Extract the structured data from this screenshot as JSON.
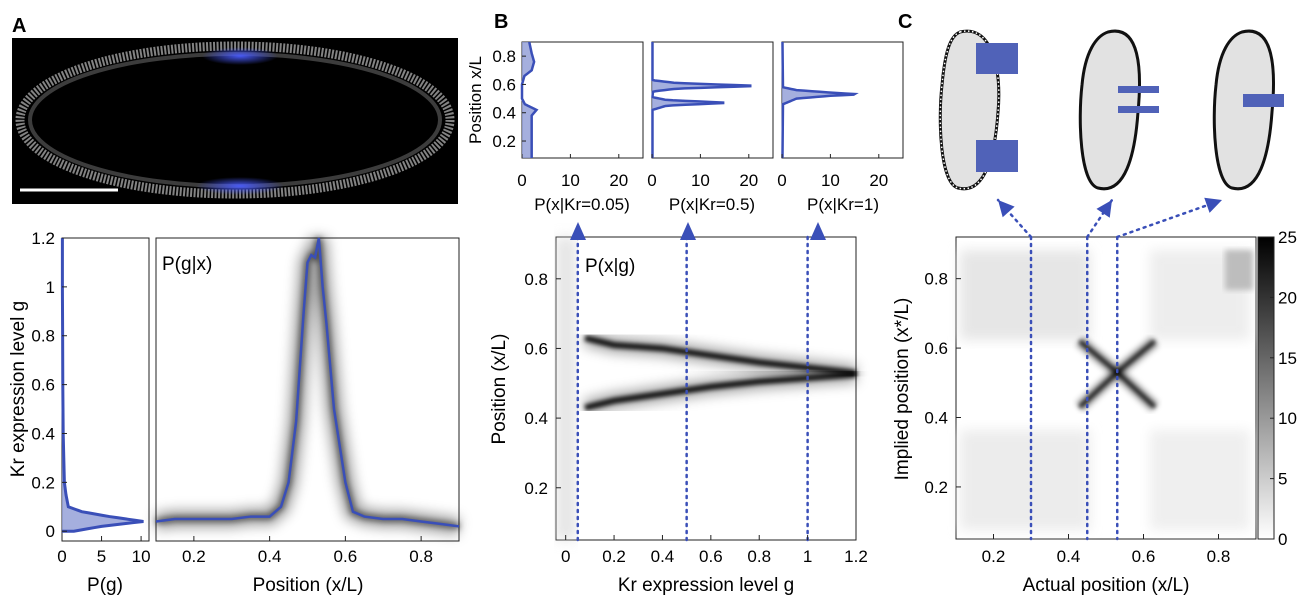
{
  "colors": {
    "accent": "#3a4fb8",
    "fill": "#8f9bd6",
    "embryo": "#e2e2e2"
  },
  "panels": {
    "A": {
      "letter": "A",
      "scale_bar": true,
      "pg": {
        "xlabel": "P(g)",
        "ylabel": "Kr expression level g",
        "xticks": [
          "0",
          "5",
          "10"
        ],
        "yticks": [
          "0",
          "0.2",
          "0.4",
          "0.6",
          "0.8",
          "1",
          "1.2"
        ]
      },
      "pgx": {
        "title": "P(g|x)",
        "xlabel": "Position (x/L)",
        "xticks": [
          "0.2",
          "0.4",
          "0.6",
          "0.8"
        ]
      }
    },
    "B": {
      "letter": "B",
      "insets": [
        {
          "label": "P(x|Kr=0.05)"
        },
        {
          "label": "P(x|Kr=0.5)"
        },
        {
          "label": "P(x|Kr=1)"
        }
      ],
      "inset_ylabel": "Position x/L",
      "inset_yticks": [
        "0.2",
        "0.4",
        "0.6",
        "0.8"
      ],
      "inset_xticks": [
        "0",
        "10",
        "20"
      ],
      "main": {
        "title": "P(x|g)",
        "xlabel": "Kr expression level g",
        "ylabel": "Position (x/L)",
        "xticks": [
          "0",
          "0.2",
          "0.4",
          "0.6",
          "0.8",
          "1",
          "1.2"
        ],
        "yticks": [
          "0.2",
          "0.4",
          "0.6",
          "0.8"
        ]
      }
    },
    "C": {
      "letter": "C",
      "xlabel": "Actual position (x/L)",
      "ylabel": "Implied position (x*/L)",
      "xticks": [
        "0.2",
        "0.4",
        "0.6",
        "0.8"
      ],
      "yticks": [
        "0.2",
        "0.4",
        "0.6",
        "0.8"
      ],
      "colorbar_ticks": [
        "0",
        "5",
        "10",
        "15",
        "20",
        "25"
      ]
    }
  },
  "chart_data": [
    {
      "panel": "A-left",
      "type": "area",
      "xlabel": "P(g)",
      "ylabel": "Kr expression level g",
      "xlim": [
        0,
        11
      ],
      "ylim": [
        -0.04,
        1.2
      ],
      "series": [
        {
          "g": [
            0,
            0.02,
            0.04,
            0.06,
            0.08,
            0.1,
            0.15,
            0.2,
            0.4,
            0.6,
            0.8,
            1.0,
            1.2
          ],
          "p": [
            1.5,
            5,
            10.3,
            6,
            2.5,
            0.8,
            0.5,
            0.3,
            0.15,
            0.1,
            0.08,
            0.05,
            0.05
          ]
        }
      ]
    },
    {
      "panel": "A-right",
      "type": "line",
      "title": "P(g|x)",
      "xlabel": "Position (x/L)",
      "xlim": [
        0.1,
        0.9
      ],
      "ylim": [
        -0.04,
        1.2
      ],
      "series": [
        {
          "x": [
            0.1,
            0.15,
            0.2,
            0.25,
            0.3,
            0.35,
            0.4,
            0.43,
            0.45,
            0.47,
            0.49,
            0.5,
            0.51,
            0.52,
            0.53,
            0.54,
            0.55,
            0.57,
            0.6,
            0.62,
            0.65,
            0.7,
            0.75,
            0.8,
            0.85,
            0.9
          ],
          "y": [
            0.04,
            0.05,
            0.05,
            0.05,
            0.05,
            0.06,
            0.06,
            0.1,
            0.2,
            0.45,
            0.9,
            1.1,
            1.13,
            1.12,
            1.2,
            1.0,
            0.85,
            0.5,
            0.2,
            0.08,
            0.06,
            0.05,
            0.05,
            0.04,
            0.03,
            0.02
          ]
        }
      ]
    },
    {
      "panel": "B-insets",
      "type": "area",
      "xlim": [
        0,
        25
      ],
      "ylim": [
        0.08,
        0.9
      ],
      "series": [
        {
          "label": "P(x|Kr=0.05)",
          "pos": [
            0.08,
            0.1,
            0.3,
            0.38,
            0.42,
            0.46,
            0.5,
            0.6,
            0.66,
            0.7,
            0.76,
            0.82,
            0.9
          ],
          "density": [
            2,
            2,
            2,
            2,
            3,
            0.6,
            0,
            0,
            0.5,
            2,
            2.5,
            2,
            1.5
          ]
        },
        {
          "label": "P(x|Kr=0.5)",
          "pos": [
            0.08,
            0.42,
            0.45,
            0.47,
            0.49,
            0.51,
            0.55,
            0.57,
            0.59,
            0.61,
            0.63,
            0.9
          ],
          "density": [
            0.1,
            0.1,
            3,
            16,
            3,
            0.1,
            0.2,
            5,
            22,
            5,
            0.1,
            0.1
          ]
        },
        {
          "label": "P(x|Kr=1)",
          "pos": [
            0.08,
            0.46,
            0.5,
            0.52,
            0.53,
            0.54,
            0.56,
            0.58,
            0.9
          ],
          "density": [
            0.1,
            0.2,
            3,
            10,
            16,
            11,
            3,
            0.2,
            0.1
          ]
        }
      ]
    },
    {
      "panel": "B-main",
      "type": "heatmap",
      "title": "P(x|g)",
      "xlabel": "Kr expression level g",
      "ylabel": "Position (x/L)",
      "xlim": [
        -0.04,
        1.2
      ],
      "ylim": [
        0.05,
        0.92
      ],
      "series": [
        {
          "ridge": "upper",
          "g": [
            0.08,
            0.2,
            0.4,
            0.6,
            0.8,
            1.0,
            1.2
          ],
          "x": [
            0.63,
            0.61,
            0.6,
            0.58,
            0.56,
            0.545,
            0.53
          ]
        },
        {
          "ridge": "lower",
          "g": [
            0.08,
            0.2,
            0.4,
            0.6,
            0.8,
            1.0,
            1.2
          ],
          "x": [
            0.43,
            0.45,
            0.47,
            0.49,
            0.505,
            0.515,
            0.525
          ]
        }
      ],
      "markers_g": [
        0.05,
        0.5,
        1.0
      ]
    },
    {
      "panel": "C",
      "type": "heatmap",
      "xlabel": "Actual position (x/L)",
      "ylabel": "Implied position (x*/L)",
      "xlim": [
        0.1,
        0.9
      ],
      "ylim": [
        0.05,
        0.92
      ],
      "colorbar": [
        0,
        25
      ],
      "series": [
        {
          "arm": "diag-up",
          "x": [
            0.43,
            0.53,
            0.63
          ],
          "y": [
            0.43,
            0.53,
            0.62
          ]
        },
        {
          "arm": "diag-down",
          "x": [
            0.43,
            0.53,
            0.63
          ],
          "y": [
            0.62,
            0.53,
            0.43
          ]
        }
      ],
      "markers_x": [
        0.3,
        0.45,
        0.53
      ]
    }
  ]
}
